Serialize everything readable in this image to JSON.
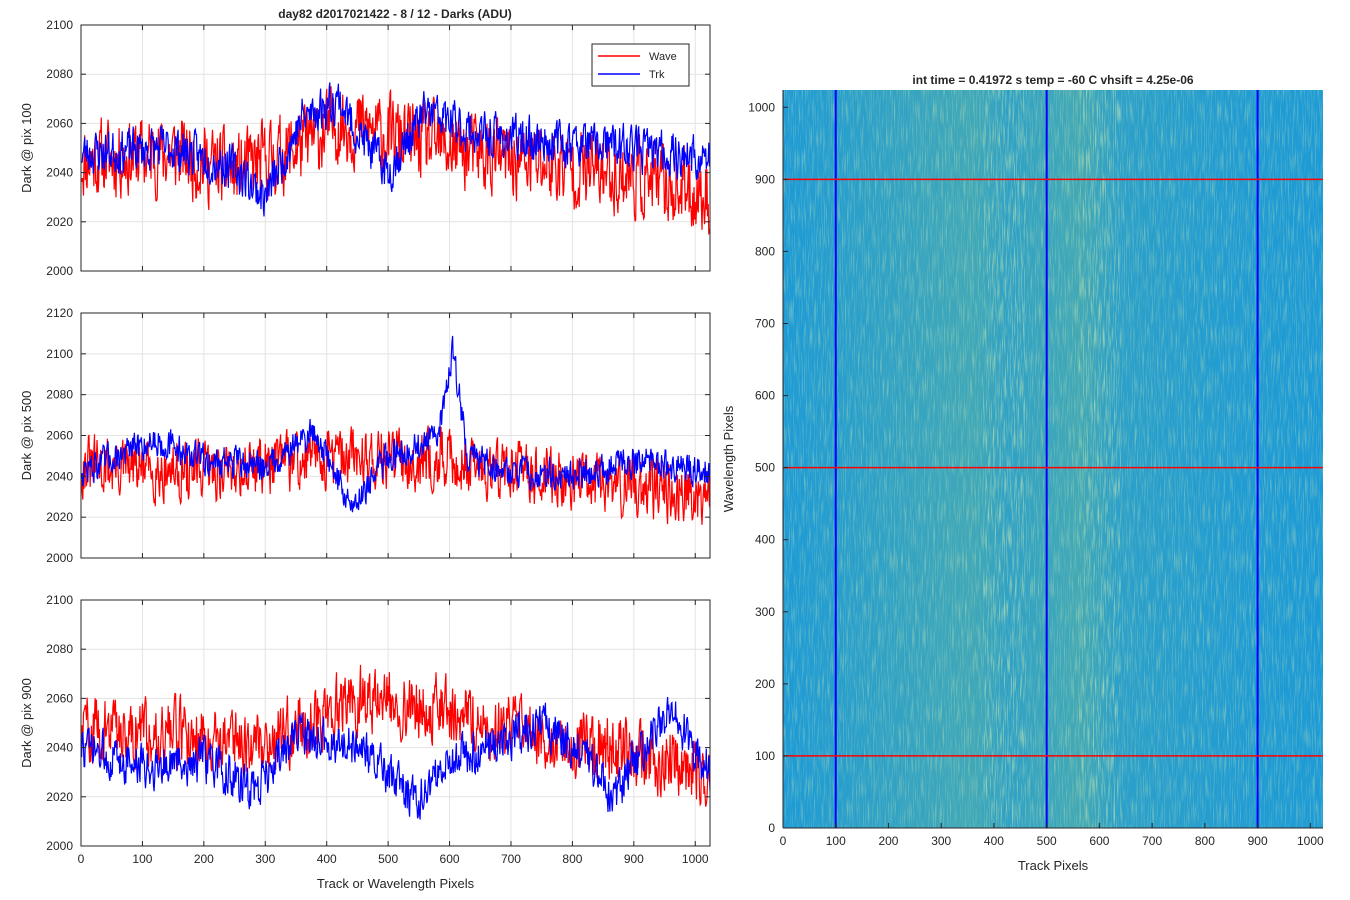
{
  "figure": {
    "title": "day82 d2017021422 - 8 / 12 - Darks (ADU)",
    "shared_xlabel": "Track or Wavelength Pixels"
  },
  "chart_data": [
    {
      "type": "line",
      "id": "top",
      "ylabel": "Dark @ pix 100",
      "xlim": [
        0,
        1024
      ],
      "ylim": [
        2000,
        2100
      ],
      "xticks": [
        0,
        100,
        200,
        300,
        400,
        500,
        600,
        700,
        800,
        900,
        1000
      ],
      "yticks": [
        2000,
        2020,
        2040,
        2060,
        2080,
        2100
      ],
      "grid": true,
      "legend": {
        "placement": "top-right",
        "entries": [
          "Wave",
          "Trk"
        ]
      },
      "series": [
        {
          "name": "Wave",
          "color": "#ff0000",
          "generator": {
            "base": [
              [
                0,
                2045
              ],
              [
                150,
                2048
              ],
              [
                250,
                2040
              ],
              [
                350,
                2050
              ],
              [
                420,
                2060
              ],
              [
                500,
                2055
              ],
              [
                600,
                2050
              ],
              [
                700,
                2045
              ],
              [
                800,
                2042
              ],
              [
                900,
                2038
              ],
              [
                1024,
                2030
              ]
            ],
            "noise": 14,
            "seed": 11
          }
        },
        {
          "name": "Trk",
          "color": "#0000ff",
          "generator": {
            "base": [
              [
                0,
                2048
              ],
              [
                150,
                2050
              ],
              [
                250,
                2042
              ],
              [
                300,
                2030
              ],
              [
                360,
                2062
              ],
              [
                420,
                2070
              ],
              [
                440,
                2060
              ],
              [
                500,
                2040
              ],
              [
                560,
                2065
              ],
              [
                650,
                2055
              ],
              [
                800,
                2052
              ],
              [
                900,
                2050
              ],
              [
                1024,
                2045
              ]
            ],
            "noise": 8,
            "seed": 23
          }
        }
      ]
    },
    {
      "type": "line",
      "id": "middle",
      "ylabel": "Dark @ pix 500",
      "xlim": [
        0,
        1024
      ],
      "ylim": [
        2000,
        2120
      ],
      "xticks": [
        0,
        100,
        200,
        300,
        400,
        500,
        600,
        700,
        800,
        900,
        1000
      ],
      "yticks": [
        2000,
        2020,
        2040,
        2060,
        2080,
        2100,
        2120
      ],
      "grid": true,
      "series": [
        {
          "name": "Wave",
          "color": "#ff0000",
          "generator": {
            "base": [
              [
                0,
                2045
              ],
              [
                200,
                2042
              ],
              [
                400,
                2050
              ],
              [
                600,
                2048
              ],
              [
                800,
                2038
              ],
              [
                900,
                2035
              ],
              [
                1024,
                2032
              ]
            ],
            "noise": 13,
            "seed": 31
          }
        },
        {
          "name": "Trk",
          "color": "#0000ff",
          "generator": {
            "base": [
              [
                0,
                2042
              ],
              [
                120,
                2058
              ],
              [
                200,
                2048
              ],
              [
                300,
                2045
              ],
              [
                380,
                2062
              ],
              [
                440,
                2025
              ],
              [
                500,
                2050
              ],
              [
                580,
                2058
              ],
              [
                605,
                2102
              ],
              [
                630,
                2050
              ],
              [
                700,
                2042
              ],
              [
                800,
                2040
              ],
              [
                900,
                2048
              ],
              [
                1024,
                2042
              ]
            ],
            "noise": 7,
            "seed": 47
          }
        }
      ]
    },
    {
      "type": "line",
      "id": "bottom",
      "ylabel": "Dark @ pix 900",
      "xlabel": "Track or Wavelength Pixels",
      "xlim": [
        0,
        1024
      ],
      "ylim": [
        2000,
        2100
      ],
      "xticks": [
        0,
        100,
        200,
        300,
        400,
        500,
        600,
        700,
        800,
        900,
        1000
      ],
      "yticks": [
        2000,
        2020,
        2040,
        2060,
        2080,
        2100
      ],
      "grid": true,
      "series": [
        {
          "name": "Wave",
          "color": "#ff0000",
          "generator": {
            "base": [
              [
                0,
                2048
              ],
              [
                200,
                2045
              ],
              [
                300,
                2042
              ],
              [
                450,
                2060
              ],
              [
                550,
                2058
              ],
              [
                650,
                2050
              ],
              [
                750,
                2045
              ],
              [
                850,
                2040
              ],
              [
                1024,
                2030
              ]
            ],
            "noise": 12,
            "seed": 59
          }
        },
        {
          "name": "Trk",
          "color": "#0000ff",
          "generator": {
            "base": [
              [
                0,
                2040
              ],
              [
                100,
                2032
              ],
              [
                200,
                2035
              ],
              [
                280,
                2022
              ],
              [
                350,
                2045
              ],
              [
                450,
                2040
              ],
              [
                550,
                2018
              ],
              [
                600,
                2035
              ],
              [
                750,
                2050
              ],
              [
                830,
                2035
              ],
              [
                870,
                2018
              ],
              [
                900,
                2035
              ],
              [
                960,
                2055
              ],
              [
                1024,
                2030
              ]
            ],
            "noise": 8,
            "seed": 73
          }
        }
      ]
    },
    {
      "type": "heatmap",
      "id": "image",
      "title": "int time = 0.41972 s    temp = -60 C    vhsift = 4.25e-06",
      "xlabel": "Track Pixels",
      "ylabel": "Wavelength Pixels",
      "xlim": [
        0,
        1024
      ],
      "ylim": [
        0,
        1024
      ],
      "xticks": [
        0,
        100,
        200,
        300,
        400,
        500,
        600,
        700,
        800,
        900,
        1000
      ],
      "yticks": [
        0,
        100,
        200,
        300,
        400,
        500,
        600,
        700,
        800,
        900,
        1000
      ],
      "colormap": "parula",
      "base_color": "#1d9ad6",
      "bright_color": "#9ccb68",
      "bright_bands_x": [
        [
          380,
          460
        ],
        [
          560,
          640
        ]
      ],
      "vertical_lines": {
        "color": "#0000ff",
        "x": [
          100,
          500,
          900
        ]
      },
      "horizontal_lines": {
        "color": "#ff0000",
        "y": [
          100,
          500,
          900
        ]
      }
    }
  ]
}
